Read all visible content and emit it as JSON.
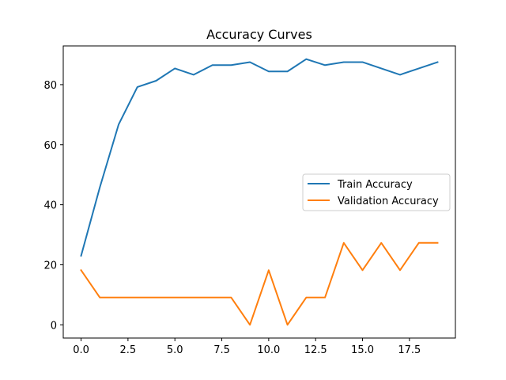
{
  "chart_data": {
    "type": "line",
    "title": "Accuracy Curves",
    "xlabel": "",
    "ylabel": "",
    "x": [
      0,
      1,
      2,
      3,
      4,
      5,
      6,
      7,
      8,
      9,
      10,
      11,
      12,
      13,
      14,
      15,
      16,
      17,
      18,
      19
    ],
    "xlim": [
      -0.95,
      19.95
    ],
    "ylim": [
      -4.4,
      92.9
    ],
    "xticks": [
      0.0,
      2.5,
      5.0,
      7.5,
      10.0,
      12.5,
      15.0,
      17.5
    ],
    "xtick_labels": [
      "0.0",
      "2.5",
      "5.0",
      "7.5",
      "10.0",
      "12.5",
      "15.0",
      "17.5"
    ],
    "yticks": [
      0,
      20,
      40,
      60,
      80
    ],
    "ytick_labels": [
      "0",
      "20",
      "40",
      "60",
      "80"
    ],
    "grid": false,
    "legend_position": "center-right",
    "series": [
      {
        "name": "Train Accuracy",
        "color": "#1f77b4",
        "values": [
          23.0,
          45.8,
          66.7,
          79.2,
          81.3,
          85.4,
          83.3,
          86.5,
          86.5,
          87.5,
          84.4,
          84.4,
          88.5,
          86.5,
          87.5,
          87.5,
          85.4,
          83.3,
          85.4,
          87.5
        ]
      },
      {
        "name": "Validation Accuracy",
        "color": "#ff7f0e",
        "values": [
          18.2,
          9.1,
          9.1,
          9.1,
          9.1,
          9.1,
          9.1,
          9.1,
          9.1,
          0.0,
          18.2,
          0.0,
          9.1,
          9.1,
          27.3,
          18.2,
          27.3,
          18.2,
          27.3,
          27.3
        ]
      }
    ]
  }
}
